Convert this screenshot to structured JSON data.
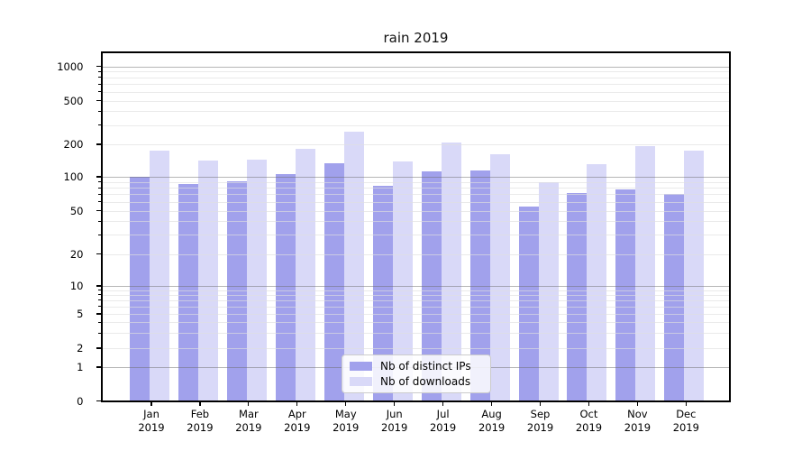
{
  "title": "rain 2019",
  "chart_data": {
    "type": "bar",
    "title": "rain 2019",
    "categories": [
      "Jan",
      "Feb",
      "Mar",
      "Apr",
      "May",
      "Jun",
      "Jul",
      "Aug",
      "Sep",
      "Oct",
      "Nov",
      "Dec"
    ],
    "category_year": "2019",
    "series": [
      {
        "name": "Nb of distinct IPs",
        "color": "#a1a1ec",
        "values": [
          100,
          87,
          91,
          106,
          134,
          83,
          112,
          115,
          54,
          72,
          77,
          70
        ]
      },
      {
        "name": "Nb of downloads",
        "color": "#d9d9f8",
        "values": [
          175,
          141,
          144,
          180,
          260,
          140,
          208,
          161,
          90,
          131,
          194,
          176
        ]
      }
    ],
    "yscale": "symlog",
    "ytick_values": [
      1000,
      500,
      200,
      100,
      50,
      20,
      10,
      5,
      2,
      1,
      0
    ],
    "ytick_labels": [
      "1000",
      "500",
      "200",
      "100",
      "50",
      "20",
      "10",
      "5",
      "2",
      "1",
      "0"
    ],
    "ylim": [
      0,
      1350
    ],
    "xlabel": "",
    "ylabel": "",
    "grid": "both",
    "legend_position": "lower center",
    "legend_labels": [
      "Nb of distinct IPs",
      "Nb of downloads"
    ]
  },
  "colors": {
    "bar_ips": "#a1a1ec",
    "bar_downloads": "#d9d9f8",
    "grid_major": "#b3b3b3",
    "grid_minor": "#ebebeb",
    "spine": "#000000",
    "background": "#ffffff",
    "text": "#000000"
  }
}
